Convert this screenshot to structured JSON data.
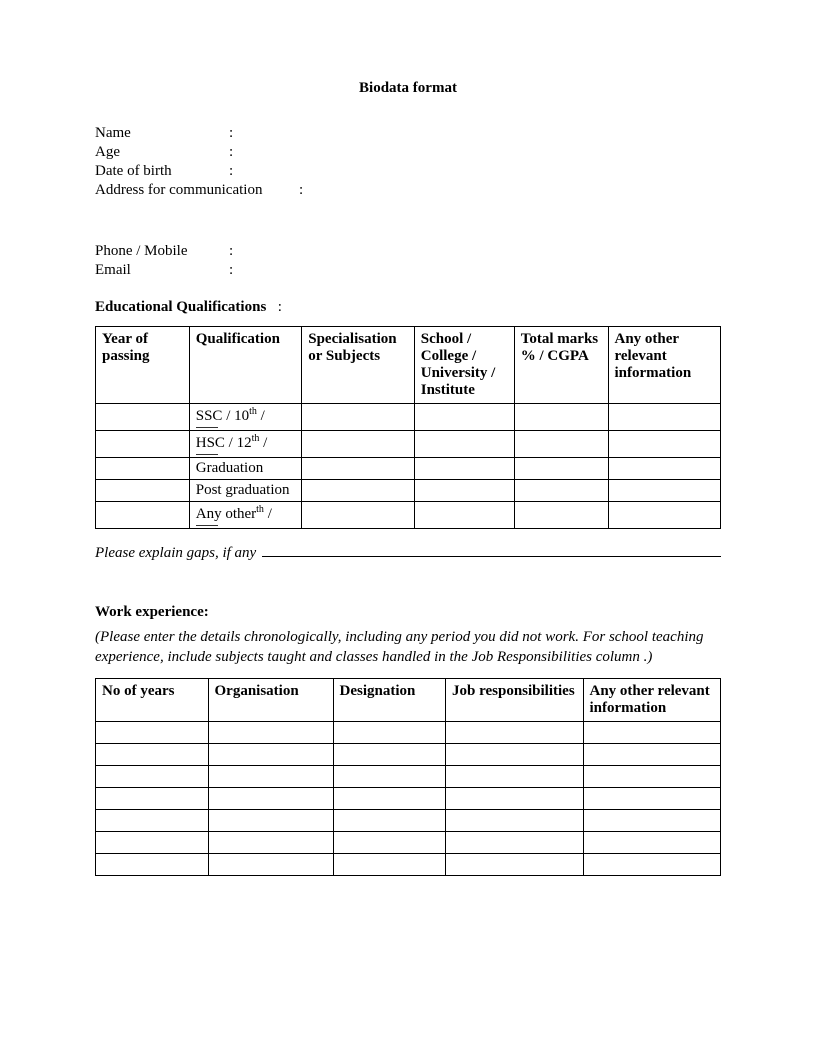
{
  "title": "Biodata format",
  "fields": {
    "name": "Name",
    "age": "Age",
    "dob": "Date of birth",
    "address": "Address for communication",
    "phone": "Phone / Mobile",
    "email": "Email"
  },
  "education": {
    "heading": "Educational Qualifications",
    "columns": [
      "Year of passing",
      "Qualification",
      "Specialisation or Subjects",
      "School / College / University / Institute",
      "Total marks % / CGPA",
      "Any other relevant information"
    ],
    "rows": [
      {
        "qualification": "SSC / 10th /"
      },
      {
        "qualification": "HSC / 12th /"
      },
      {
        "qualification": "Graduation"
      },
      {
        "qualification": "Post graduation"
      },
      {
        "qualification": "Any other"
      }
    ],
    "gaps_label": "Please explain gaps, if any"
  },
  "work": {
    "heading": "Work experience:",
    "note": "(Please enter the details chronologically, including any period you did not work. For school teaching experience, include subjects taught and classes handled in the Job Responsibilities column .)",
    "columns": [
      "No of years",
      "Organisation",
      "Designation",
      "Job responsibilities",
      "Any other relevant information"
    ],
    "row_count": 7
  }
}
